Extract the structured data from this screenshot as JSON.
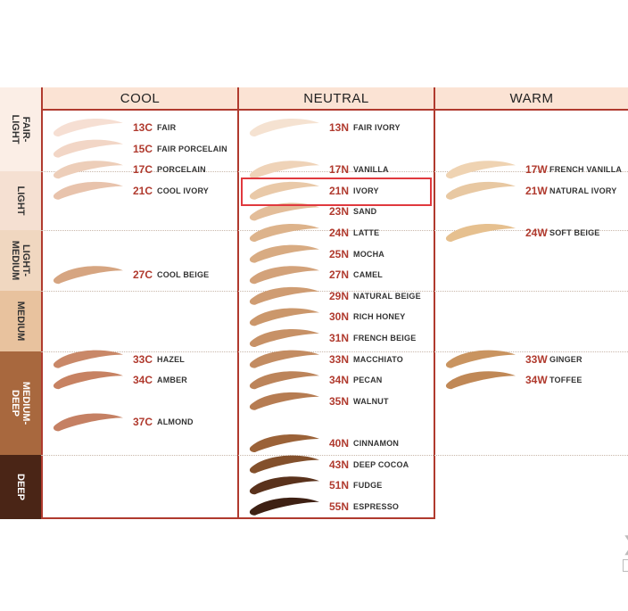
{
  "columns": [
    {
      "id": "cool",
      "label": "COOL"
    },
    {
      "id": "neutral",
      "label": "NEUTRAL"
    },
    {
      "id": "warm",
      "label": "WARM"
    }
  ],
  "categories": [
    {
      "label": "FAIR-\nLIGHT",
      "color": "#fbeee6",
      "text": "#333333"
    },
    {
      "label": "LIGHT",
      "color": "#f5e0d2",
      "text": "#333333"
    },
    {
      "label": "LIGHT-\nMEDIUM",
      "color": "#f0d7c0",
      "text": "#333333"
    },
    {
      "label": "MEDIUM",
      "color": "#e8c29e",
      "text": "#333333"
    },
    {
      "label": "MEDIUM-\nDEEP",
      "color": "#a8683e",
      "text": "#ffffff"
    },
    {
      "label": "DEEP",
      "color": "#4a2516",
      "text": "#ffffff"
    }
  ],
  "shades": [
    {
      "col": 0,
      "row": 0,
      "code": "13C",
      "name": "FAIR",
      "color": "#f6dfd3"
    },
    {
      "col": 0,
      "row": 1,
      "code": "15C",
      "name": "FAIR PORCELAIN",
      "color": "#f2d6c6"
    },
    {
      "col": 0,
      "row": 2,
      "code": "17C",
      "name": "PORCELAIN",
      "color": "#edceb9"
    },
    {
      "col": 0,
      "row": 3,
      "code": "21C",
      "name": "COOL IVORY",
      "color": "#e8c3ac"
    },
    {
      "col": 0,
      "row": 7,
      "code": "27C",
      "name": "COOL BEIGE",
      "color": "#d6a581"
    },
    {
      "col": 0,
      "row": 11,
      "code": "33C",
      "name": "HAZEL",
      "color": "#c98868"
    },
    {
      "col": 0,
      "row": 12,
      "code": "34C",
      "name": "AMBER",
      "color": "#c78262"
    },
    {
      "col": 0,
      "row": 14,
      "code": "37C",
      "name": "ALMOND",
      "color": "#c58063"
    },
    {
      "col": 1,
      "row": 0,
      "code": "13N",
      "name": "FAIR IVORY",
      "color": "#f5e2d1"
    },
    {
      "col": 1,
      "row": 2,
      "code": "17N",
      "name": "VANILLA",
      "color": "#efd3b8"
    },
    {
      "col": 1,
      "row": 3,
      "code": "21N",
      "name": "IVORY",
      "color": "#e9c9a8"
    },
    {
      "col": 1,
      "row": 4,
      "code": "23N",
      "name": "SAND",
      "color": "#e3bd99"
    },
    {
      "col": 1,
      "row": 5,
      "code": "24N",
      "name": "LATTE",
      "color": "#ddb38b"
    },
    {
      "col": 1,
      "row": 6,
      "code": "25N",
      "name": "MOCHA",
      "color": "#d8ab82"
    },
    {
      "col": 1,
      "row": 7,
      "code": "27N",
      "name": "CAMEL",
      "color": "#d3a27a"
    },
    {
      "col": 1,
      "row": 8,
      "code": "29N",
      "name": "NATURAL BEIGE",
      "color": "#cf9c72"
    },
    {
      "col": 1,
      "row": 9,
      "code": "30N",
      "name": "RICH HONEY",
      "color": "#cb976b"
    },
    {
      "col": 1,
      "row": 10,
      "code": "31N",
      "name": "FRENCH BEIGE",
      "color": "#c79166"
    },
    {
      "col": 1,
      "row": 11,
      "code": "33N",
      "name": "MACCHIATO",
      "color": "#c38c62"
    },
    {
      "col": 1,
      "row": 12,
      "code": "34N",
      "name": "PECAN",
      "color": "#bc845a"
    },
    {
      "col": 1,
      "row": 13,
      "code": "35N",
      "name": "WALNUT",
      "color": "#b67c52"
    },
    {
      "col": 1,
      "row": 15,
      "code": "40N",
      "name": "CINNAMON",
      "color": "#9b6238"
    },
    {
      "col": 1,
      "row": 16,
      "code": "43N",
      "name": "DEEP COCOA",
      "color": "#83502c"
    },
    {
      "col": 1,
      "row": 17,
      "code": "51N",
      "name": "FUDGE",
      "color": "#5a321c"
    },
    {
      "col": 1,
      "row": 18,
      "code": "55N",
      "name": "ESPRESSO",
      "color": "#3e2013"
    },
    {
      "col": 2,
      "row": 2,
      "code": "17W",
      "name": "FRENCH VANILLA",
      "color": "#efd3b2"
    },
    {
      "col": 2,
      "row": 3,
      "code": "21W",
      "name": "NATURAL IVORY",
      "color": "#e8c8a2"
    },
    {
      "col": 2,
      "row": 5,
      "code": "24W",
      "name": "SOFT BEIGE",
      "color": "#e6c08f"
    },
    {
      "col": 2,
      "row": 11,
      "code": "33W",
      "name": "GINGER",
      "color": "#c99460"
    },
    {
      "col": 2,
      "row": 12,
      "code": "34W",
      "name": "TOFFEE",
      "color": "#c08856"
    }
  ],
  "theme": {
    "accent": "#b03a2e",
    "highlight": "#e0393e"
  }
}
